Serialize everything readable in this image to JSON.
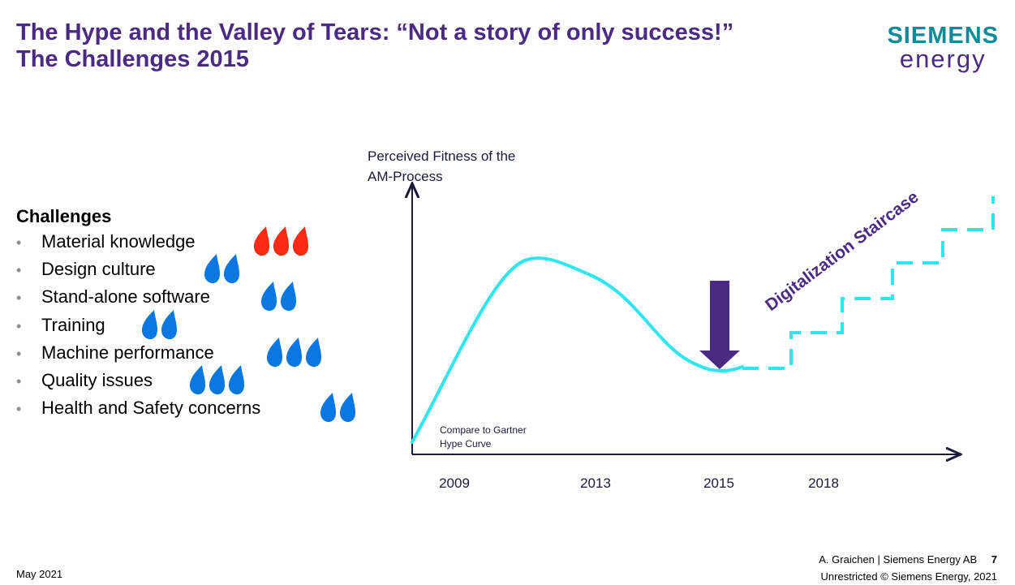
{
  "title": {
    "line1": "The Hype and the Valley of Tears: “Not a story of only success!”",
    "line2": "The Challenges 2015"
  },
  "logo": {
    "line1": "SIEMENS",
    "line2": "energy"
  },
  "challenges": {
    "heading": "Challenges",
    "items": [
      {
        "label": "Material knowledge",
        "drops": 3,
        "drop_color": "#ff2a14"
      },
      {
        "label": "Design culture",
        "drops": 2,
        "drop_color": "#0a78e0"
      },
      {
        "label": "Stand-alone software",
        "drops": 2,
        "drop_color": "#0a78e0"
      },
      {
        "label": "Training",
        "drops": 2,
        "drop_color": "#0a78e0"
      },
      {
        "label": "Machine performance",
        "drops": 3,
        "drop_color": "#0a78e0"
      },
      {
        "label": "Quality issues",
        "drops": 3,
        "drop_color": "#0a78e0"
      },
      {
        "label": "Health and Safety concerns",
        "drops": 2,
        "drop_color": "#0a78e0"
      }
    ]
  },
  "diagram": {
    "y_axis_label_line1": "Perceived Fitness of the",
    "y_axis_label_line2": "AM-Process",
    "years": [
      "2009",
      "2013",
      "2015",
      "2018"
    ],
    "note_line1": "Compare to Gartner",
    "note_line2": "Hype Curve",
    "staircase_label": "Digitalization Staircase",
    "curve_color": "#2ee6f0",
    "arrow_color": "#4b2a84",
    "axis_color": "#1a1a3a",
    "label_color": "#4b2a84"
  },
  "footer": {
    "date": "May 2021",
    "author": "A. Graichen | Siemens Energy AB",
    "page": "7",
    "copyright": "Unrestricted © Siemens Energy, 2021"
  }
}
